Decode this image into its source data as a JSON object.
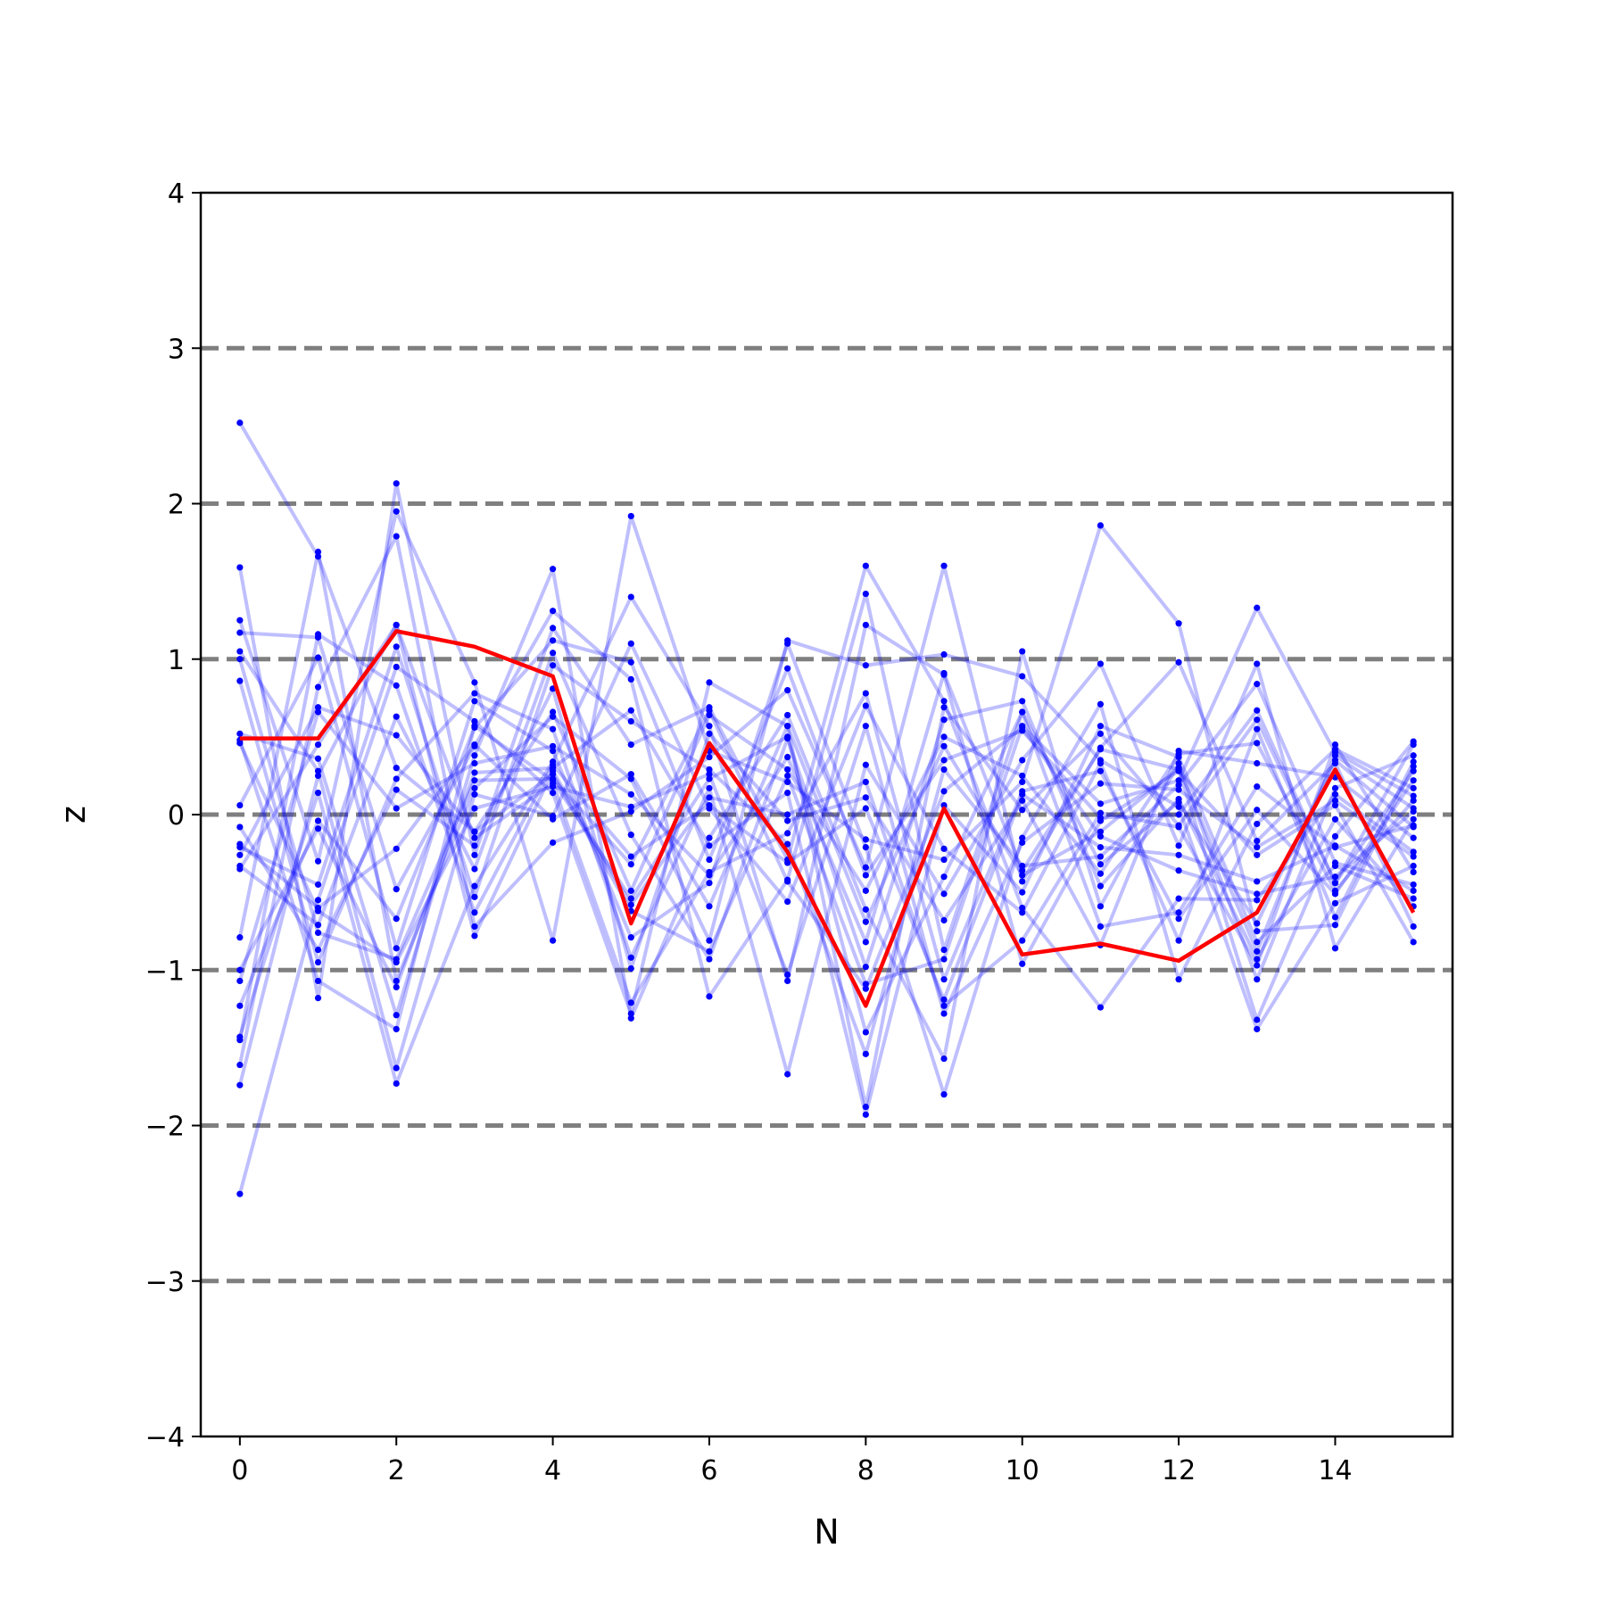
{
  "chart_data": {
    "type": "line",
    "title": "",
    "xlabel": "N",
    "ylabel": "z",
    "xlim": [
      -0.5,
      15.5
    ],
    "ylim": [
      -4,
      4
    ],
    "xticks": [
      0,
      2,
      4,
      6,
      8,
      10,
      12,
      14
    ],
    "yticks": [
      -4,
      -3,
      -2,
      -1,
      0,
      1,
      2,
      3,
      4
    ],
    "ytick_labels": [
      "−4",
      "−3",
      "−2",
      "−1",
      "0",
      "1",
      "2",
      "3",
      "4"
    ],
    "reference_lines": [
      -3,
      -2,
      -1,
      0,
      1,
      2,
      3
    ],
    "x": [
      0,
      1,
      2,
      3,
      4,
      5,
      6,
      7,
      8,
      9,
      10,
      11,
      12,
      13,
      14,
      15
    ],
    "highlight": [
      0.49,
      0.49,
      1.18,
      1.08,
      0.89,
      -0.7,
      0.46,
      -0.24,
      -1.23,
      0.04,
      -0.9,
      -0.83,
      -0.94,
      -0.63,
      0.29,
      -0.63
    ],
    "series": [
      {
        "values": [
          2.52,
          1.66,
          0.3,
          -0.11,
          0.26,
          -0.62,
          -0.88,
          0.25,
          -1.09,
          -0.93,
          0.57,
          0.07,
          0.22,
          1.33,
          0.4,
          0.12
        ]
      },
      {
        "values": [
          -2.44,
          -0.55,
          0.95,
          0.6,
          0.14,
          -1.28,
          0.85,
          0.57,
          -1.88,
          0.69,
          0.03,
          0.52,
          -0.07,
          0.61,
          -0.44,
          0.45
        ]
      },
      {
        "values": [
          1.59,
          -1.18,
          2.13,
          -0.26,
          1.2,
          0.45,
          0.69,
          -0.29,
          1.6,
          0.73,
          -0.6,
          -1.24,
          -0.54,
          -0.55,
          0.13,
          -0.24
        ]
      },
      {
        "values": [
          1.25,
          -0.3,
          1.95,
          0.85,
          -0.81,
          1.92,
          0.41,
          0.21,
          -0.16,
          -0.29,
          0.21,
          1.86,
          1.23,
          -0.75,
          -0.71,
          0.31
        ]
      },
      {
        "values": [
          -0.79,
          1.69,
          -1.07,
          0.17,
          0.63,
          0.23,
          -0.81,
          1.12,
          0.96,
          1.03,
          0.89,
          0.35,
          0.05,
          -1.38,
          -0.57,
          -0.33
        ]
      },
      {
        "values": [
          -1.43,
          0.14,
          -1.73,
          -0.46,
          0.34,
          1.4,
          0.57,
          -1.07,
          1.22,
          0.9,
          -0.96,
          -0.04,
          0.28,
          -0.26,
          0.06,
          -0.82
        ]
      },
      {
        "values": [
          1.17,
          1.14,
          -0.48,
          0.44,
          1.31,
          0.87,
          -1.17,
          -0.42,
          1.42,
          -0.87,
          0.66,
          -0.72,
          -0.63,
          0.18,
          -0.21,
          -0.07
        ]
      },
      {
        "values": [
          -1.61,
          0.82,
          1.79,
          -0.72,
          -0.18,
          0.02,
          0.37,
          0.8,
          -0.34,
          1.6,
          -0.43,
          0.43,
          0.98,
          -0.17,
          0.33,
          -0.72
        ]
      },
      {
        "values": [
          0.86,
          -0.95,
          0.23,
          0.78,
          0.55,
          -0.92,
          0.17,
          -1.67,
          0.32,
          -0.51,
          0.35,
          0.97,
          -0.2,
          0.97,
          -0.86,
          -0.03
        ]
      },
      {
        "values": [
          0.52,
          0.36,
          -1.29,
          0.38,
          1.58,
          -1.31,
          -0.15,
          0.64,
          -0.61,
          -1.57,
          1.05,
          -0.59,
          0.33,
          -1.06,
          0.17,
          0.38
        ]
      },
      {
        "values": [
          -0.21,
          -0.45,
          1.08,
          -0.53,
          0.96,
          0.6,
          0.29,
          -0.19,
          -1.54,
          0.29,
          -0.33,
          -0.27,
          0.19,
          0.84,
          -0.31,
          -0.45
        ]
      },
      {
        "values": [
          0.06,
          1.01,
          -0.86,
          0.73,
          0.41,
          -0.79,
          -0.44,
          1.1,
          -0.21,
          -1.8,
          -0.15,
          0.71,
          -1.06,
          -0.06,
          0.42,
          0.17
        ]
      },
      {
        "values": [
          -0.33,
          -0.71,
          0.63,
          -0.35,
          1.04,
          -0.13,
          -0.93,
          0.49,
          -0.98,
          0.61,
          0.73,
          -0.46,
          0.1,
          -0.93,
          -0.03,
          -0.59
        ]
      },
      {
        "values": [
          1.05,
          0.28,
          -1.63,
          0.13,
          -0.01,
          1.1,
          0.04,
          -0.56,
          0.7,
          -0.22,
          -0.63,
          0.33,
          -0.81,
          0.55,
          -0.66,
          0.34
        ]
      },
      {
        "values": [
          -1.07,
          0.66,
          0.04,
          0.33,
          0.44,
          0.13,
          -0.39,
          0.37,
          -0.82,
          0.91,
          -0.36,
          0.42,
          0.29,
          -1.32,
          -0.14,
          0.47
        ]
      },
      {
        "values": [
          -0.08,
          -0.87,
          0.16,
          -0.2,
          0.81,
          -0.99,
          0.52,
          -0.04,
          0.11,
          -0.68,
          0.09,
          -0.84,
          0.41,
          0.33,
          0.24,
          -0.15
        ]
      },
      {
        "values": [
          1.0,
          -0.76,
          -0.93,
          0.22,
          0.23,
          -0.32,
          0.67,
          -0.43,
          -1.12,
          0.15,
          0.56,
          -0.14,
          -0.36,
          -0.51,
          -0.4,
          0.02
        ]
      },
      {
        "values": [
          -0.35,
          0.45,
          1.22,
          -0.78,
          0.28,
          -0.58,
          0.11,
          0.0,
          0.21,
          -1.23,
          -0.81,
          0.01,
          -0.08,
          -0.97,
          0.45,
          -0.37
        ]
      },
      {
        "values": [
          -1.23,
          -0.04,
          -0.67,
          0.56,
          1.12,
          0.98,
          -0.29,
          0.94,
          -0.39,
          0.35,
          0.54,
          -0.02,
          0.0,
          0.67,
          -0.44,
          0.28
        ]
      },
      {
        "values": [
          0.46,
          -0.62,
          -0.95,
          0.04,
          0.18,
          0.05,
          0.26,
          -1.03,
          0.57,
          -1.28,
          -0.18,
          0.2,
          0.16,
          -0.21,
          0.09,
          -0.27
        ]
      },
      {
        "values": [
          -0.26,
          0.69,
          0.51,
          -0.11,
          0.66,
          -0.49,
          0.64,
          0.29,
          -0.49,
          0.5,
          0.25,
          -0.38,
          0.39,
          0.46,
          -0.49,
          0.09
        ]
      },
      {
        "values": [
          -1.0,
          -0.09,
          -1.11,
          0.27,
          0.3,
          0.67,
          -0.2,
          0.14,
          -1.93,
          0.06,
          -0.5,
          0.57,
          0.37,
          -0.82,
          -0.33,
          -0.54
        ]
      },
      {
        "values": [
          -1.45,
          1.16,
          0.83,
          -0.63,
          0.32,
          -0.27,
          0.06,
          -0.31,
          0.04,
          -1.19,
          0.13,
          -0.21,
          -0.26,
          -0.43,
          -0.2,
          -0.49
        ]
      },
      {
        "values": [
          -0.19,
          -0.6,
          -0.22,
          0.45,
          -0.03,
          0.26,
          -0.59,
          0.57,
          -0.69,
          0.44,
          -0.39,
          -0.11,
          0.3,
          -0.88,
          0.38,
          0.04
        ]
      },
      {
        "values": [
          -1.74,
          0.25,
          1.22,
          -0.15,
          0.2,
          -1.21,
          -0.37,
          -0.12,
          0.78,
          -1.06,
          0.15,
          0.28,
          -0.67,
          0.03,
          -0.51,
          0.22
        ]
      },
      {
        "values": [
          0.48,
          -1.07,
          -1.38,
          0.57,
          0.22,
          -0.54,
          0.23,
          0.5,
          -1.4,
          -0.4,
          0.66,
          -0.32,
          0.08,
          -0.7,
          0.35,
          -0.08
        ]
      }
    ]
  }
}
